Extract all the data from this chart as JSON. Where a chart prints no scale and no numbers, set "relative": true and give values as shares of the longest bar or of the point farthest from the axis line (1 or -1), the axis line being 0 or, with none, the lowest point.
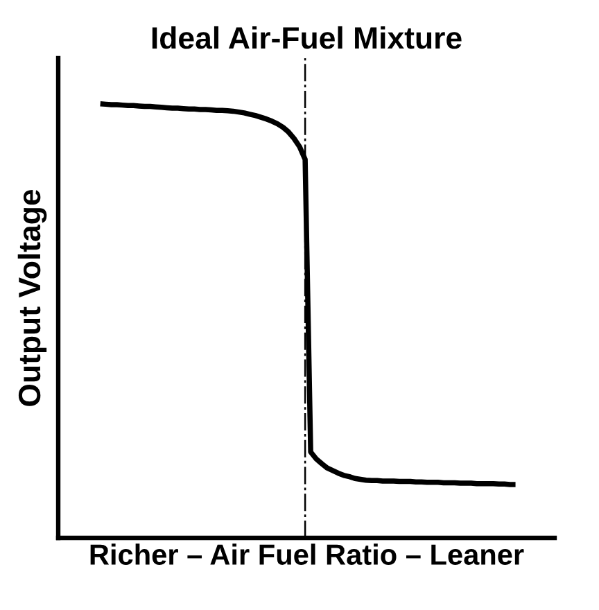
{
  "chart_data": {
    "type": "line",
    "relative": true,
    "tick_labels": false,
    "title": "Ideal Air-Fuel Mixture",
    "xlabel": "Richer – Air Fuel Ratio – Leaner",
    "ylabel": "Output Voltage",
    "categories": [
      null,
      null,
      null,
      null,
      null,
      null,
      null,
      null,
      null,
      null,
      null,
      null,
      null,
      null,
      null,
      null,
      null,
      null,
      null,
      null,
      null,
      null,
      null,
      null,
      null,
      null,
      null,
      null,
      null,
      null,
      null,
      null,
      null,
      null,
      null,
      null,
      null,
      null,
      null,
      null,
      null,
      null,
      null,
      null,
      null,
      null,
      null,
      null,
      null,
      null,
      null,
      null,
      null,
      null,
      null,
      null,
      null,
      null,
      null,
      null,
      null,
      null,
      null,
      null,
      null,
      null,
      null,
      null,
      null,
      null,
      null,
      null,
      null,
      null,
      null,
      null
    ],
    "series": [
      {
        "color": "#000000",
        "values": [
          1.0,
          0.999,
          0.998,
          0.998,
          0.997,
          0.996,
          0.996,
          0.995,
          0.994,
          0.994,
          0.993,
          0.992,
          0.991,
          0.99,
          0.99,
          0.989,
          0.988,
          0.988,
          0.987,
          0.987,
          0.986,
          0.985,
          0.985,
          0.984,
          0.983,
          0.981,
          0.979,
          0.976,
          0.973,
          0.969,
          0.965,
          0.96,
          0.954,
          0.946,
          0.935,
          0.92,
          0.901,
          0.872,
          0.198,
          0.182,
          0.171,
          0.161,
          0.155,
          0.149,
          0.144,
          0.141,
          0.137,
          0.135,
          0.133,
          0.132,
          0.132,
          0.131,
          0.131,
          0.131,
          0.13,
          0.13,
          0.13,
          0.129,
          0.129,
          0.128,
          0.128,
          0.128,
          0.127,
          0.127,
          0.127,
          0.126,
          0.126,
          0.126,
          0.125,
          0.125,
          0.125,
          0.125,
          0.124,
          0.124,
          0.123,
          0.123
        ]
      }
    ]
  }
}
